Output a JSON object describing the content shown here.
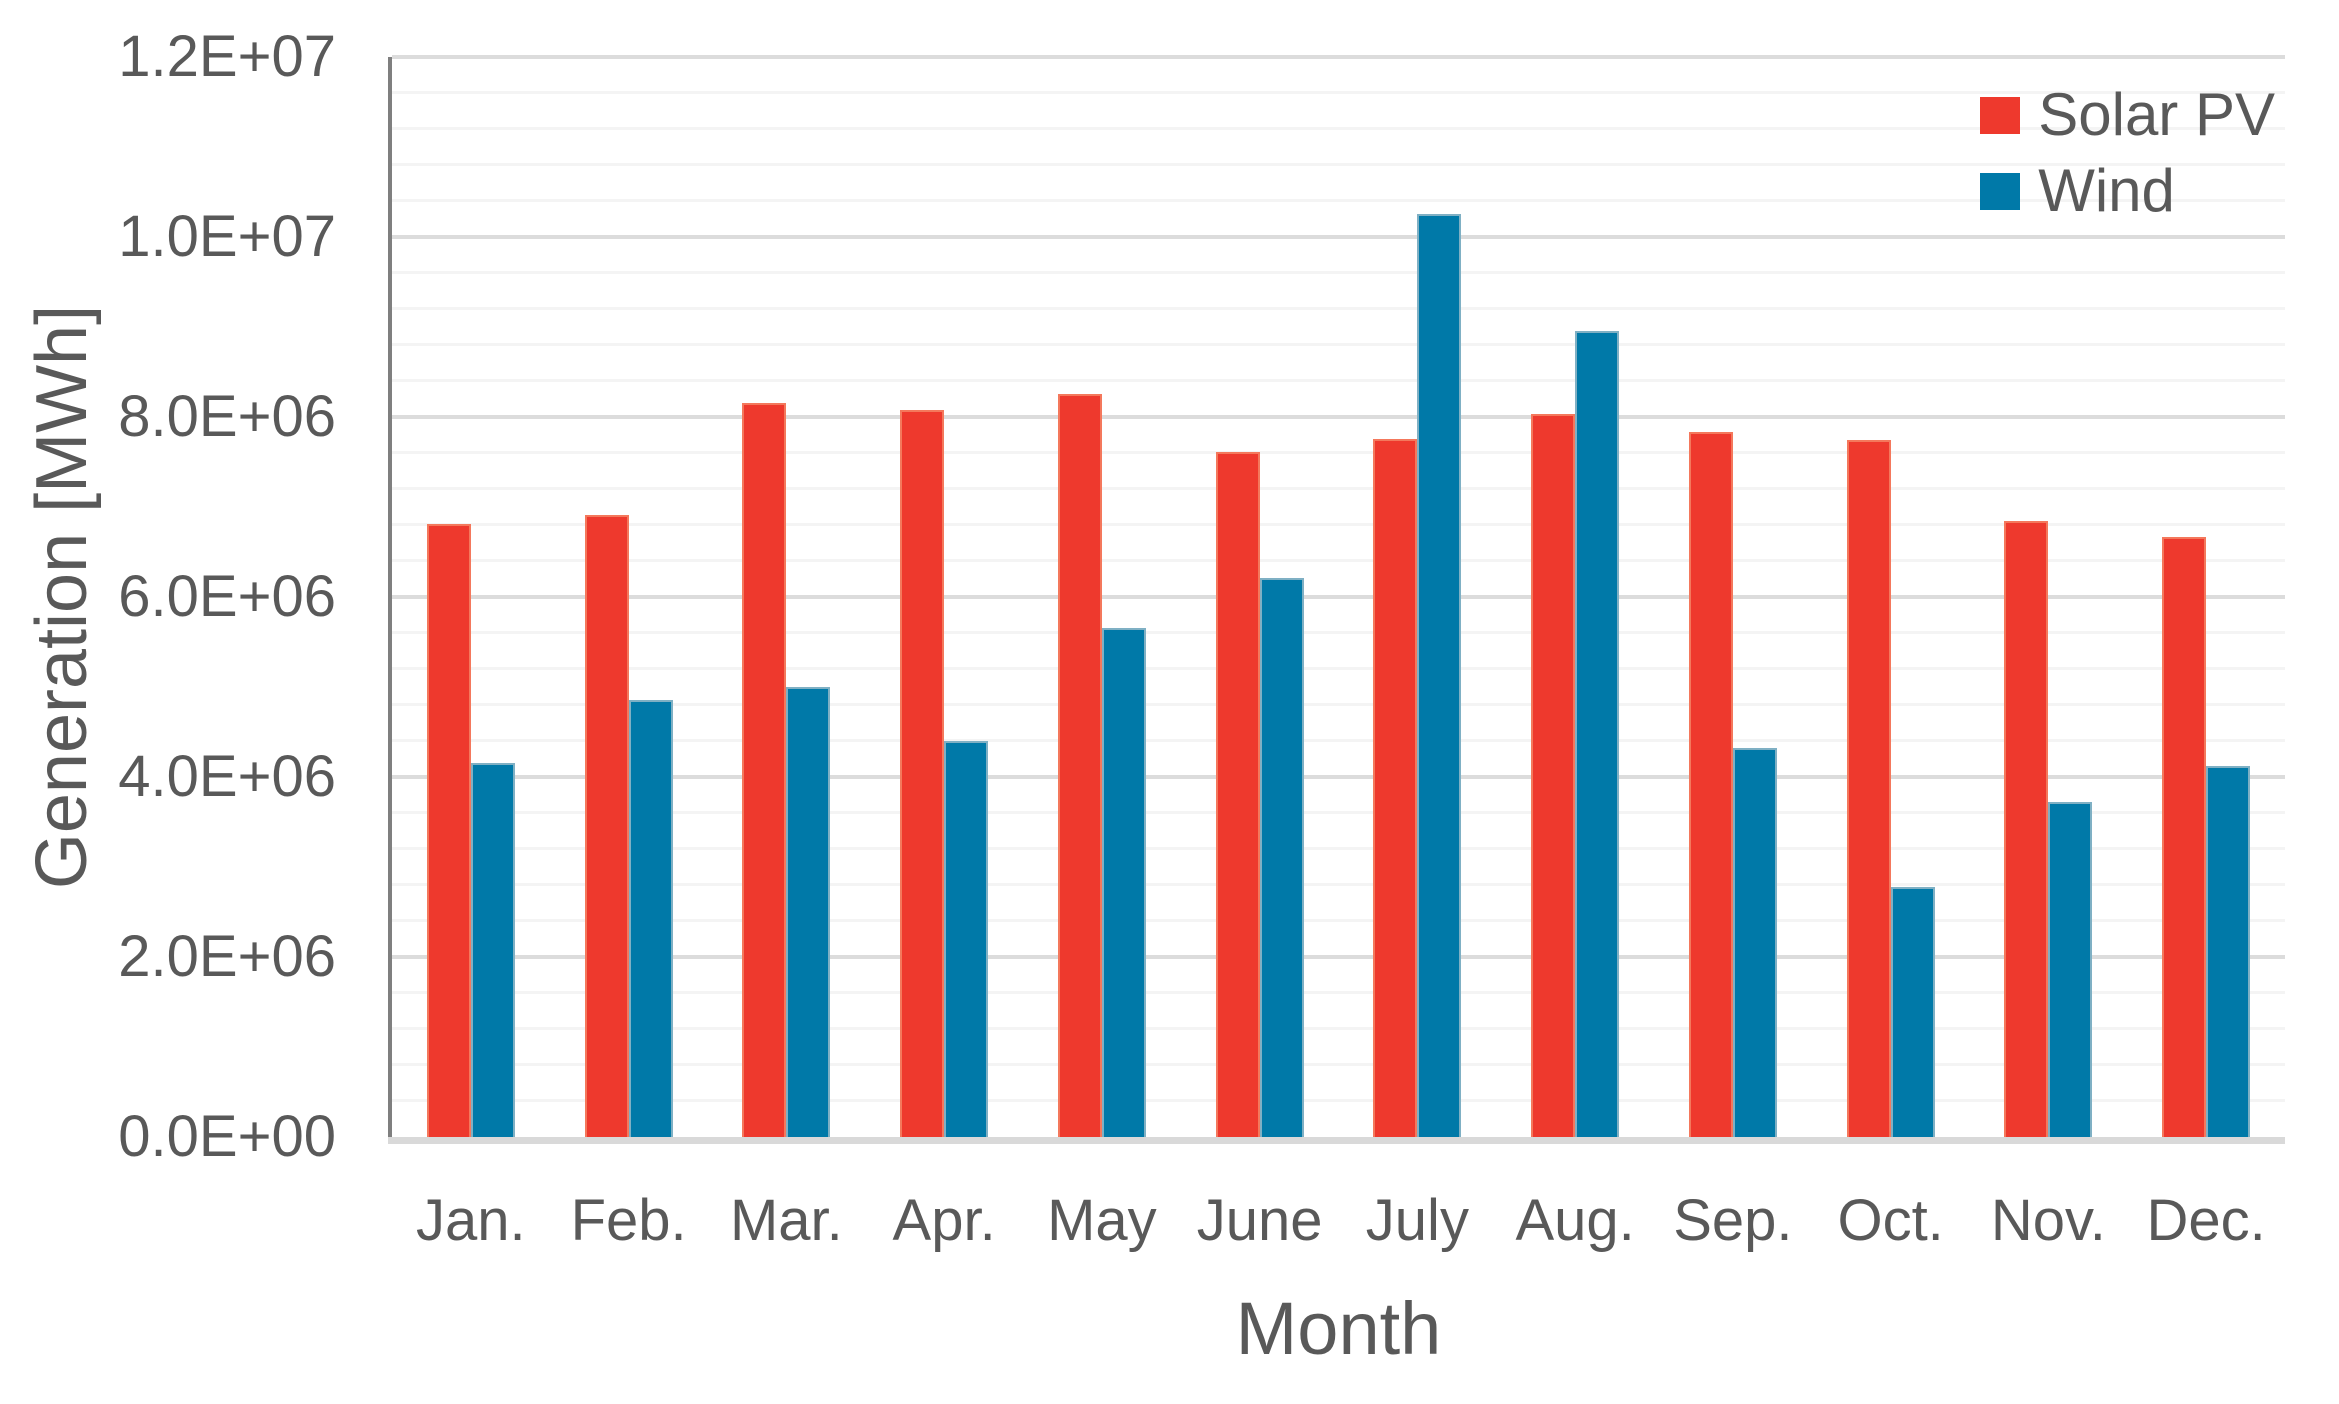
{
  "chart_data": {
    "type": "bar",
    "title": "",
    "xlabel": "Month",
    "ylabel": "Generation [MWh]",
    "categories": [
      "Jan.",
      "Feb.",
      "Mar.",
      "Apr.",
      "May",
      "June",
      "July",
      "Aug.",
      "Sep.",
      "Oct.",
      "Nov.",
      "Dec."
    ],
    "series": [
      {
        "name": "Solar PV",
        "color": "#ee392d",
        "edge_color": "#f4785c",
        "values": [
          6810000,
          6910000,
          8150000,
          8080000,
          8250000,
          7610000,
          7760000,
          8030000,
          7830000,
          7740000,
          6840000,
          6670000
        ]
      },
      {
        "name": "Wind",
        "color": "#0079a8",
        "edge_color": "#7fb0c4",
        "values": [
          4160000,
          4860000,
          5000000,
          4400000,
          5660000,
          6210000,
          10250000,
          8960000,
          4320000,
          2780000,
          3720000,
          4120000
        ]
      }
    ],
    "ylim": [
      0,
      12000000
    ],
    "y_major_unit": 2000000,
    "y_minor_unit": 400000,
    "y_ticks": [
      {
        "value": 0,
        "label": "0.0E+00"
      },
      {
        "value": 2000000,
        "label": "2.0E+06"
      },
      {
        "value": 4000000,
        "label": "4.0E+06"
      },
      {
        "value": 6000000,
        "label": "6.0E+06"
      },
      {
        "value": 8000000,
        "label": "8.0E+06"
      },
      {
        "value": 10000000,
        "label": "1.0E+07"
      },
      {
        "value": 12000000,
        "label": "1.2E+07"
      }
    ],
    "grid": true,
    "legend_position": "top-right",
    "text_color": "#595959",
    "axis_line_color": "#7f7f7f",
    "baseline_color": "#d9d9d9",
    "major_grid_color": "#dcdcdc",
    "minor_grid_color": "#f4f4f4"
  }
}
